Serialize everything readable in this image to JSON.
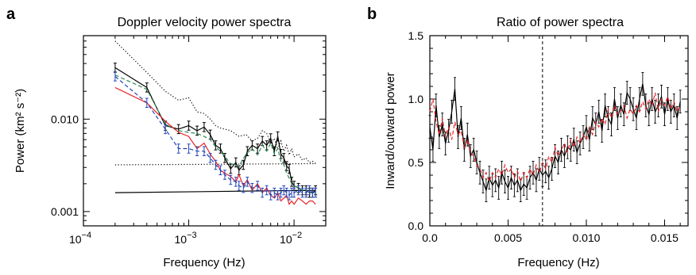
{
  "chart_data": [
    {
      "panel": "a",
      "type": "line",
      "title": "Doppler velocity power spectra",
      "xlabel": "Frequency (Hz)",
      "ylabel": "Power (km² s⁻²)",
      "xscale": "log",
      "yscale": "log",
      "xlim": [
        0.0001,
        0.02
      ],
      "ylim": [
        0.0007,
        0.08
      ],
      "x_ticks": [
        {
          "base": "10",
          "exp": "−4",
          "value": 0.0001
        },
        {
          "base": "10",
          "exp": "−3",
          "value": 0.001
        },
        {
          "base": "10",
          "exp": "−2",
          "value": 0.01
        }
      ],
      "y_ticks": [
        {
          "label": "0.001",
          "value": 0.001
        },
        {
          "label": "0.010",
          "value": 0.01
        }
      ],
      "series": [
        {
          "color": "#000000",
          "style": "dotted",
          "x": [
            0.0002,
            0.0004,
            0.0006,
            0.0008,
            0.001,
            0.0012,
            0.0014,
            0.0016,
            0.0018,
            0.002,
            0.0025,
            0.003,
            0.0035,
            0.004,
            0.0045,
            0.005,
            0.0055,
            0.006,
            0.0065,
            0.007,
            0.0075,
            0.008,
            0.0085,
            0.009,
            0.0095,
            0.01,
            0.011,
            0.012,
            0.013,
            0.014,
            0.015,
            0.016
          ],
          "y": [
            0.07,
            0.032,
            0.02,
            0.016,
            0.017,
            0.012,
            0.0115,
            0.01,
            0.0085,
            0.008,
            0.0075,
            0.0065,
            0.0068,
            0.0058,
            0.0062,
            0.0075,
            0.007,
            0.0055,
            0.0062,
            0.0047,
            0.0058,
            0.0045,
            0.0052,
            0.0041,
            0.0048,
            0.0039,
            0.0042,
            0.0036,
            0.0038,
            0.0034,
            0.0035,
            0.0033
          ]
        },
        {
          "color": "#000000",
          "style": "dotted",
          "x": [
            0.0002,
            0.016
          ],
          "y": [
            0.0032,
            0.0033
          ]
        },
        {
          "color": "#000000",
          "style": "solid",
          "x": [
            0.0002,
            0.016
          ],
          "y": [
            0.0016,
            0.0017
          ]
        },
        {
          "color": "#000000",
          "style": "solid",
          "error_bars": true,
          "x": [
            0.0002,
            0.0004,
            0.0006,
            0.0008,
            0.001,
            0.0012,
            0.0014,
            0.0016,
            0.0018,
            0.002,
            0.0022,
            0.0025,
            0.0028,
            0.003,
            0.0033,
            0.0036,
            0.004,
            0.0045,
            0.005,
            0.0055,
            0.006,
            0.0065,
            0.007,
            0.0075,
            0.008,
            0.0085,
            0.009,
            0.0095,
            0.01,
            0.011,
            0.012,
            0.013,
            0.014,
            0.015,
            0.016
          ],
          "y": [
            0.036,
            0.022,
            0.0085,
            0.0078,
            0.0085,
            0.0075,
            0.0082,
            0.0068,
            0.0052,
            0.0048,
            0.0038,
            0.0029,
            0.0034,
            0.0028,
            0.0032,
            0.0045,
            0.0052,
            0.0048,
            0.0058,
            0.0052,
            0.0062,
            0.0045,
            0.0065,
            0.0042,
            0.0038,
            0.0031,
            0.0029,
            0.0021,
            0.0019,
            0.0018,
            0.0017,
            0.0017,
            0.0016,
            0.0016,
            0.0017
          ]
        },
        {
          "color": "#2e8b57",
          "style": "dashed",
          "x": [
            0.0002,
            0.0004,
            0.0006,
            0.0008,
            0.001,
            0.0012,
            0.0014,
            0.0016,
            0.0018,
            0.002,
            0.0025,
            0.003,
            0.0035,
            0.004,
            0.0045,
            0.005,
            0.0055,
            0.006,
            0.0065,
            0.007,
            0.0075,
            0.008,
            0.0085,
            0.009,
            0.0095,
            0.01,
            0.011,
            0.012,
            0.013,
            0.014,
            0.015,
            0.016
          ],
          "y": [
            0.03,
            0.021,
            0.0088,
            0.0075,
            0.0072,
            0.007,
            0.0065,
            0.006,
            0.005,
            0.0045,
            0.0033,
            0.0031,
            0.0042,
            0.0048,
            0.0041,
            0.0052,
            0.0045,
            0.0055,
            0.0042,
            0.0048,
            0.0035,
            0.0032,
            0.0026,
            0.0023,
            0.002,
            0.0019,
            0.0018,
            0.0017,
            0.0017,
            0.0016,
            0.0016,
            0.0016
          ]
        },
        {
          "color": "#e8262a",
          "style": "solid",
          "x": [
            0.0002,
            0.0004,
            0.0006,
            0.0008,
            0.001,
            0.0012,
            0.0014,
            0.0016,
            0.0018,
            0.002,
            0.0022,
            0.0025,
            0.0028,
            0.003,
            0.0033,
            0.0036,
            0.004,
            0.0045,
            0.005,
            0.0055,
            0.006,
            0.0065,
            0.007,
            0.0075,
            0.008,
            0.0085,
            0.009,
            0.0095,
            0.01,
            0.011,
            0.012,
            0.013,
            0.014,
            0.015,
            0.016
          ],
          "y": [
            0.022,
            0.015,
            0.0095,
            0.0072,
            0.0065,
            0.0048,
            0.0055,
            0.0042,
            0.0035,
            0.0028,
            0.0026,
            0.0024,
            0.0021,
            0.0025,
            0.0019,
            0.0022,
            0.0017,
            0.002,
            0.0016,
            0.0018,
            0.0015,
            0.0014,
            0.0016,
            0.0013,
            0.0014,
            0.0015,
            0.0012,
            0.0013,
            0.0012,
            0.0014,
            0.0013,
            0.0012,
            0.0013,
            0.0013,
            0.0012
          ]
        },
        {
          "color": "#2346b8",
          "style": "dashed",
          "error_bars": true,
          "x": [
            0.0002,
            0.0004,
            0.0006,
            0.0008,
            0.001,
            0.0012,
            0.0014,
            0.0016,
            0.0018,
            0.002,
            0.0022,
            0.0025,
            0.0028,
            0.003,
            0.0033,
            0.0036,
            0.004,
            0.0045,
            0.005,
            0.0055,
            0.006,
            0.0065,
            0.007,
            0.0075,
            0.008,
            0.0085,
            0.009,
            0.0095,
            0.01,
            0.011,
            0.012,
            0.013,
            0.014,
            0.015,
            0.016
          ],
          "y": [
            0.029,
            0.015,
            0.0078,
            0.0048,
            0.0048,
            0.0045,
            0.0045,
            0.0038,
            0.0032,
            0.0028,
            0.0025,
            0.0022,
            0.0021,
            0.0019,
            0.0018,
            0.0021,
            0.0018,
            0.0019,
            0.0016,
            0.0017,
            0.0015,
            0.0016,
            0.0015,
            0.0016,
            0.0017,
            0.0016,
            0.0015,
            0.0016,
            0.0016,
            0.0017,
            0.0016,
            0.0016,
            0.0017,
            0.0016,
            0.0016
          ]
        }
      ]
    },
    {
      "panel": "b",
      "type": "line",
      "title": "Ratio of power spectra",
      "xlabel": "Frequency (Hz)",
      "ylabel": "Inward/outward power",
      "xlim": [
        0,
        0.0165
      ],
      "ylim": [
        0,
        1.5
      ],
      "x_ticks": [
        "0.0",
        "0.005",
        "0.010",
        "0.015"
      ],
      "x_tick_values": [
        0,
        0.005,
        0.01,
        0.015
      ],
      "y_ticks": [
        "0.0",
        "0.5",
        "1.0",
        "1.5"
      ],
      "y_tick_values": [
        0,
        0.5,
        1.0,
        1.5
      ],
      "vline_x": 0.0072,
      "series": [
        {
          "color": "#000000",
          "style": "solid",
          "error_bars": true,
          "x": [
            0.0,
            0.0002,
            0.0004,
            0.0006,
            0.0008,
            0.001,
            0.0012,
            0.0014,
            0.0016,
            0.0018,
            0.002,
            0.0022,
            0.0024,
            0.0026,
            0.0028,
            0.003,
            0.0032,
            0.0034,
            0.0036,
            0.0038,
            0.004,
            0.0042,
            0.0044,
            0.0046,
            0.0048,
            0.005,
            0.0052,
            0.0054,
            0.0056,
            0.0058,
            0.006,
            0.0062,
            0.0064,
            0.0066,
            0.0068,
            0.007,
            0.0072,
            0.0074,
            0.0076,
            0.0078,
            0.008,
            0.0082,
            0.0084,
            0.0086,
            0.0088,
            0.009,
            0.0092,
            0.0094,
            0.0096,
            0.0098,
            0.01,
            0.0102,
            0.0104,
            0.0106,
            0.0108,
            0.011,
            0.0112,
            0.0114,
            0.0116,
            0.0118,
            0.012,
            0.0122,
            0.0124,
            0.0126,
            0.0128,
            0.013,
            0.0132,
            0.0134,
            0.0136,
            0.0138,
            0.014,
            0.0142,
            0.0144,
            0.0146,
            0.0148,
            0.015,
            0.0152,
            0.0154,
            0.0156,
            0.0158,
            0.016
          ],
          "y": [
            0.78,
            0.6,
            0.95,
            0.7,
            0.8,
            0.65,
            0.75,
            0.9,
            1.08,
            0.7,
            0.85,
            0.6,
            0.72,
            0.55,
            0.6,
            0.5,
            0.42,
            0.35,
            0.28,
            0.38,
            0.32,
            0.36,
            0.3,
            0.42,
            0.35,
            0.3,
            0.38,
            0.32,
            0.36,
            0.28,
            0.33,
            0.3,
            0.38,
            0.42,
            0.36,
            0.45,
            0.4,
            0.43,
            0.38,
            0.45,
            0.55,
            0.5,
            0.6,
            0.55,
            0.62,
            0.6,
            0.68,
            0.58,
            0.65,
            0.7,
            0.78,
            0.68,
            0.85,
            0.8,
            0.9,
            0.75,
            0.95,
            0.85,
            0.8,
            1.0,
            0.85,
            0.95,
            0.88,
            1.05,
            1.0,
            0.92,
            0.85,
            1.0,
            1.12,
            0.95,
            0.88,
            1.0,
            0.9,
            0.95,
            1.02,
            0.88,
            1.0,
            0.9,
            0.95,
            0.85,
            0.98
          ]
        },
        {
          "color": "#e8262a",
          "style": "dashed",
          "x": [
            0.0,
            0.0002,
            0.0004,
            0.0006,
            0.0008,
            0.001,
            0.0012,
            0.0014,
            0.0016,
            0.0018,
            0.002,
            0.0022,
            0.0024,
            0.0026,
            0.0028,
            0.003,
            0.0032,
            0.0034,
            0.0036,
            0.0038,
            0.004,
            0.0042,
            0.0044,
            0.0046,
            0.0048,
            0.005,
            0.0052,
            0.0054,
            0.0056,
            0.0058,
            0.006,
            0.0062,
            0.0064,
            0.0066,
            0.0068,
            0.007,
            0.0072,
            0.0074,
            0.0076,
            0.0078,
            0.008,
            0.0082,
            0.0084,
            0.0086,
            0.0088,
            0.009,
            0.0092,
            0.0094,
            0.0096,
            0.0098,
            0.01,
            0.0102,
            0.0104,
            0.0106,
            0.0108,
            0.011,
            0.0112,
            0.0114,
            0.0116,
            0.0118,
            0.012,
            0.0122,
            0.0124,
            0.0126,
            0.0128,
            0.013,
            0.0132,
            0.0134,
            0.0136,
            0.0138,
            0.014,
            0.0142,
            0.0144,
            0.0146,
            0.0148,
            0.015,
            0.0152,
            0.0154,
            0.0156,
            0.0158,
            0.016
          ],
          "y": [
            0.9,
            1.0,
            0.82,
            0.72,
            0.85,
            0.7,
            0.78,
            0.68,
            0.82,
            0.72,
            0.75,
            0.62,
            0.68,
            0.58,
            0.55,
            0.48,
            0.45,
            0.38,
            0.42,
            0.35,
            0.42,
            0.38,
            0.45,
            0.4,
            0.48,
            0.42,
            0.45,
            0.38,
            0.43,
            0.35,
            0.42,
            0.38,
            0.45,
            0.4,
            0.48,
            0.42,
            0.5,
            0.45,
            0.55,
            0.5,
            0.62,
            0.55,
            0.6,
            0.65,
            0.58,
            0.68,
            0.62,
            0.7,
            0.65,
            0.72,
            0.68,
            0.78,
            0.72,
            0.82,
            0.78,
            0.85,
            0.8,
            0.92,
            0.85,
            0.95,
            0.88,
            0.9,
            0.95,
            0.85,
            0.92,
            0.88,
            0.95,
            0.9,
            0.98,
            0.92,
            1.0,
            0.95,
            1.05,
            0.9,
            1.0,
            0.95,
            1.02,
            0.92,
            0.98,
            0.9,
            0.95
          ]
        }
      ]
    }
  ]
}
